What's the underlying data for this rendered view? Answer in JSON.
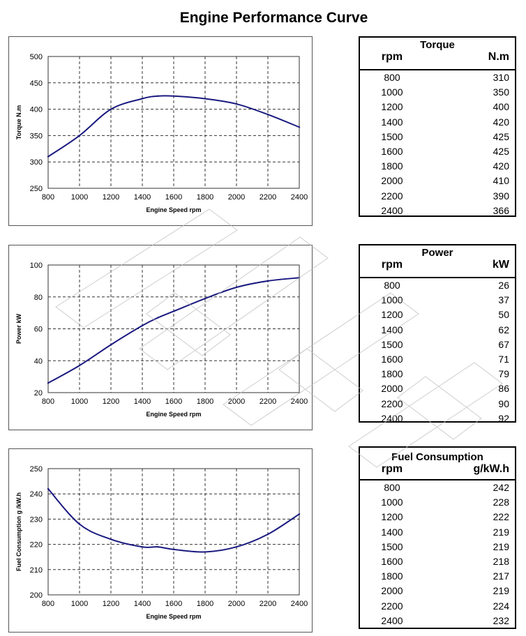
{
  "title": "Engine Performance Curve",
  "colors": {
    "curve": "#1a1a80",
    "grid": "#333333",
    "frame": "#555555"
  },
  "chart_data": [
    {
      "type": "line",
      "name": "torque",
      "title": "Torque",
      "xlabel": "Engine Speed rpm",
      "ylabel": "Torque N.m",
      "xlim": [
        800,
        2400
      ],
      "ylim": [
        250,
        500
      ],
      "xticks": [
        "800",
        "1000",
        "1200",
        "1400",
        "1600",
        "1800",
        "2000",
        "2200",
        "2400"
      ],
      "yticks": [
        "250",
        "300",
        "350",
        "400",
        "450",
        "500"
      ],
      "x": [
        800,
        1000,
        1200,
        1400,
        1500,
        1600,
        1800,
        2000,
        2200,
        2400
      ],
      "y": [
        310,
        350,
        400,
        420,
        425,
        425,
        420,
        410,
        390,
        366
      ]
    },
    {
      "type": "line",
      "name": "power",
      "title": "Power",
      "xlabel": "Engine Speed rpm",
      "ylabel": "Power kW",
      "xlim": [
        800,
        2400
      ],
      "ylim": [
        20,
        100
      ],
      "xticks": [
        "800",
        "1000",
        "1200",
        "1400",
        "1600",
        "1800",
        "2000",
        "2200",
        "2400"
      ],
      "yticks": [
        "20",
        "40",
        "60",
        "80",
        "100"
      ],
      "x": [
        800,
        1000,
        1200,
        1400,
        1500,
        1600,
        1800,
        2000,
        2200,
        2400
      ],
      "y": [
        26,
        37,
        50,
        62,
        67,
        71,
        79,
        86,
        90,
        92
      ]
    },
    {
      "type": "line",
      "name": "fuel",
      "title": "Fuel Consumption",
      "xlabel": "Engine Speed rpm",
      "ylabel": "Fuel Consumption g /kW.h",
      "xlim": [
        800,
        2400
      ],
      "ylim": [
        200,
        250
      ],
      "xticks": [
        "800",
        "1000",
        "1200",
        "1400",
        "1600",
        "1800",
        "2000",
        "2200",
        "2400"
      ],
      "yticks": [
        "200",
        "210",
        "220",
        "230",
        "240",
        "250"
      ],
      "x": [
        800,
        1000,
        1200,
        1400,
        1500,
        1600,
        1800,
        2000,
        2200,
        2400
      ],
      "y": [
        242,
        228,
        222,
        219,
        219,
        218,
        217,
        219,
        224,
        232
      ]
    }
  ],
  "tables": [
    {
      "title": "Torque",
      "col1": "rpm",
      "col2": "N.m",
      "rows": [
        [
          "800",
          "310"
        ],
        [
          "1000",
          "350"
        ],
        [
          "1200",
          "400"
        ],
        [
          "1400",
          "420"
        ],
        [
          "1500",
          "425"
        ],
        [
          "1600",
          "425"
        ],
        [
          "1800",
          "420"
        ],
        [
          "2000",
          "410"
        ],
        [
          "2200",
          "390"
        ],
        [
          "2400",
          "366"
        ]
      ]
    },
    {
      "title": "Power",
      "col1": "rpm",
      "col2": "kW",
      "rows": [
        [
          "800",
          "26"
        ],
        [
          "1000",
          "37"
        ],
        [
          "1200",
          "50"
        ],
        [
          "1400",
          "62"
        ],
        [
          "1500",
          "67"
        ],
        [
          "1600",
          "71"
        ],
        [
          "1800",
          "79"
        ],
        [
          "2000",
          "86"
        ],
        [
          "2200",
          "90"
        ],
        [
          "2400",
          "92"
        ]
      ]
    },
    {
      "title": "Fuel Consumption",
      "col1": "rpm",
      "col2": "g/kW.h",
      "rows": [
        [
          "800",
          "242"
        ],
        [
          "1000",
          "228"
        ],
        [
          "1200",
          "222"
        ],
        [
          "1400",
          "219"
        ],
        [
          "1500",
          "219"
        ],
        [
          "1600",
          "218"
        ],
        [
          "1800",
          "217"
        ],
        [
          "2000",
          "219"
        ],
        [
          "2200",
          "224"
        ],
        [
          "2400",
          "232"
        ]
      ]
    }
  ]
}
